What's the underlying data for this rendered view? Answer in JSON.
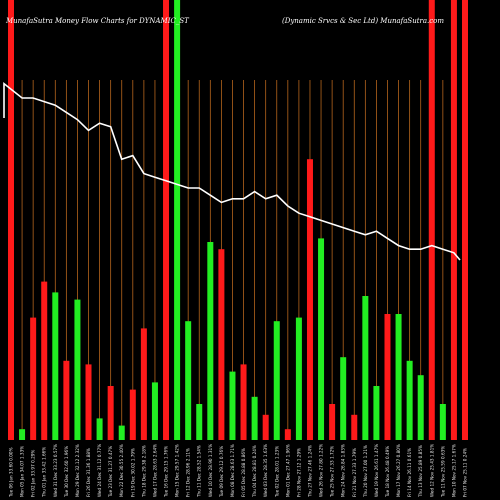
{
  "chart_data": {
    "type": "bar",
    "title_left": "MunafaSutra  Money Flow  Charts for DYNAMIC_ST",
    "title_right": "(Dynamic Srvcs & Sec Ltd) MunafaSutra.com",
    "categories": [
      "Tue 06 Jan 33.60 0.00%",
      "Mon 05 Jan 34.07 1.33%",
      "Fri 02 Jan 33.97 0.29%",
      "Thu 01 Jan 33.42 1.66%",
      "Wed 31 Dec 33.23 0.57%",
      "Tue 30 Dec 32.60 1.96%",
      "Mon 29 Dec 32.12 2.32%",
      "Fri 26 Dec 31.36 1.88%",
      "Wed 24 Dec 31.12 0.77%",
      "Tue 23 Dec 31.27 0.47%",
      "Mon 22 Dec 30.55 2.40%",
      "Fri 19 Dec 30.02 1.79%",
      "Thu 18 Dec 29.38 2.18%",
      "Wed 17 Dec 28.63 2.64%",
      "Tue 16 Dec 29.15 1.76%",
      "Mon 15 Dec 29.57 1.42%",
      "Fri 12 Dec 28.96 2.11%",
      "Thu 11 Dec 28.52 1.54%",
      "Wed 10 Dec 28.90 1.31%",
      "Tue 09 Dec 29.12 0.76%",
      "Mon 08 Dec 28.63 1.71%",
      "Fri 05 Dec 28.88 0.86%",
      "Thu 04 Dec 28.81 0.24%",
      "Wed 03 Dec 28.35 1.63%",
      "Tue 02 Dec 28.01 1.23%",
      "Mon 01 Dec 27.47 1.96%",
      "Fri 28 Nov 27.12 1.29%",
      "Thu 27 Nov 27.46 1.24%",
      "Wed 26 Nov 27.80 1.22%",
      "Tue 25 Nov 27.33 1.72%",
      "Mon 24 Nov 26.84 1.83%",
      "Fri 21 Nov 27.33 1.79%",
      "Thu 20 Nov 27.00 1.21%",
      "Wed 19 Nov 26.61 1.47%",
      "Tue 18 Nov 26.48 0.49%",
      "Mon 17 Nov 26.27 0.80%",
      "Fri 14 Nov 26.11 0.61%",
      "Thu 13 Nov 25.89 0.85%",
      "Wed 12 Nov 25.43 1.81%",
      "Tue 11 Nov 25.59 0.63%",
      "Mon 10 Nov 25.17 1.67%",
      "Fri 07 Nov 25.11 0.24%"
    ],
    "bar_colors": [
      "red",
      "green",
      "red",
      "red",
      "green",
      "red",
      "green",
      "red",
      "green",
      "red",
      "green",
      "red",
      "red",
      "green",
      "red",
      "green",
      "green",
      "green",
      "green",
      "red",
      "green",
      "red",
      "green",
      "red",
      "green",
      "red",
      "green",
      "red",
      "green",
      "red",
      "green",
      "red",
      "green",
      "green",
      "red",
      "green",
      "green",
      "green",
      "red",
      "green",
      "red",
      "red"
    ],
    "bar_values": [
      100,
      3,
      34,
      44,
      41,
      22,
      39,
      21,
      6,
      15,
      4,
      14,
      31,
      16,
      100,
      100,
      33,
      10,
      55,
      53,
      19,
      21,
      12,
      7,
      33,
      3,
      34,
      78,
      56,
      10,
      23,
      7,
      40,
      15,
      35,
      35,
      22,
      18,
      4,
      10,
      5,
      34
    ],
    "tall_bar_values": [
      100,
      null,
      null,
      null,
      null,
      null,
      null,
      null,
      null,
      null,
      null,
      null,
      null,
      null,
      100,
      100,
      null,
      null,
      null,
      null,
      null,
      null,
      null,
      null,
      null,
      null,
      null,
      null,
      null,
      null,
      null,
      null,
      null,
      null,
      null,
      null,
      null,
      null,
      100,
      null,
      100,
      100
    ],
    "flow_line": [
      99,
      95,
      95,
      94,
      93,
      91,
      89,
      86,
      88,
      87,
      78,
      79,
      74,
      73,
      72,
      71,
      70,
      70,
      68,
      66,
      67,
      67,
      69,
      67,
      68,
      65,
      63,
      62,
      61,
      60,
      59,
      58,
      57,
      58,
      56,
      54,
      53,
      53,
      54,
      53,
      52,
      50
    ],
    "vertical_grid_color": "#b5651d",
    "colors": {
      "green": "#22ee22",
      "red": "#ff1a1a",
      "line": "#ffffff",
      "background": "#000000"
    },
    "grid": true
  }
}
